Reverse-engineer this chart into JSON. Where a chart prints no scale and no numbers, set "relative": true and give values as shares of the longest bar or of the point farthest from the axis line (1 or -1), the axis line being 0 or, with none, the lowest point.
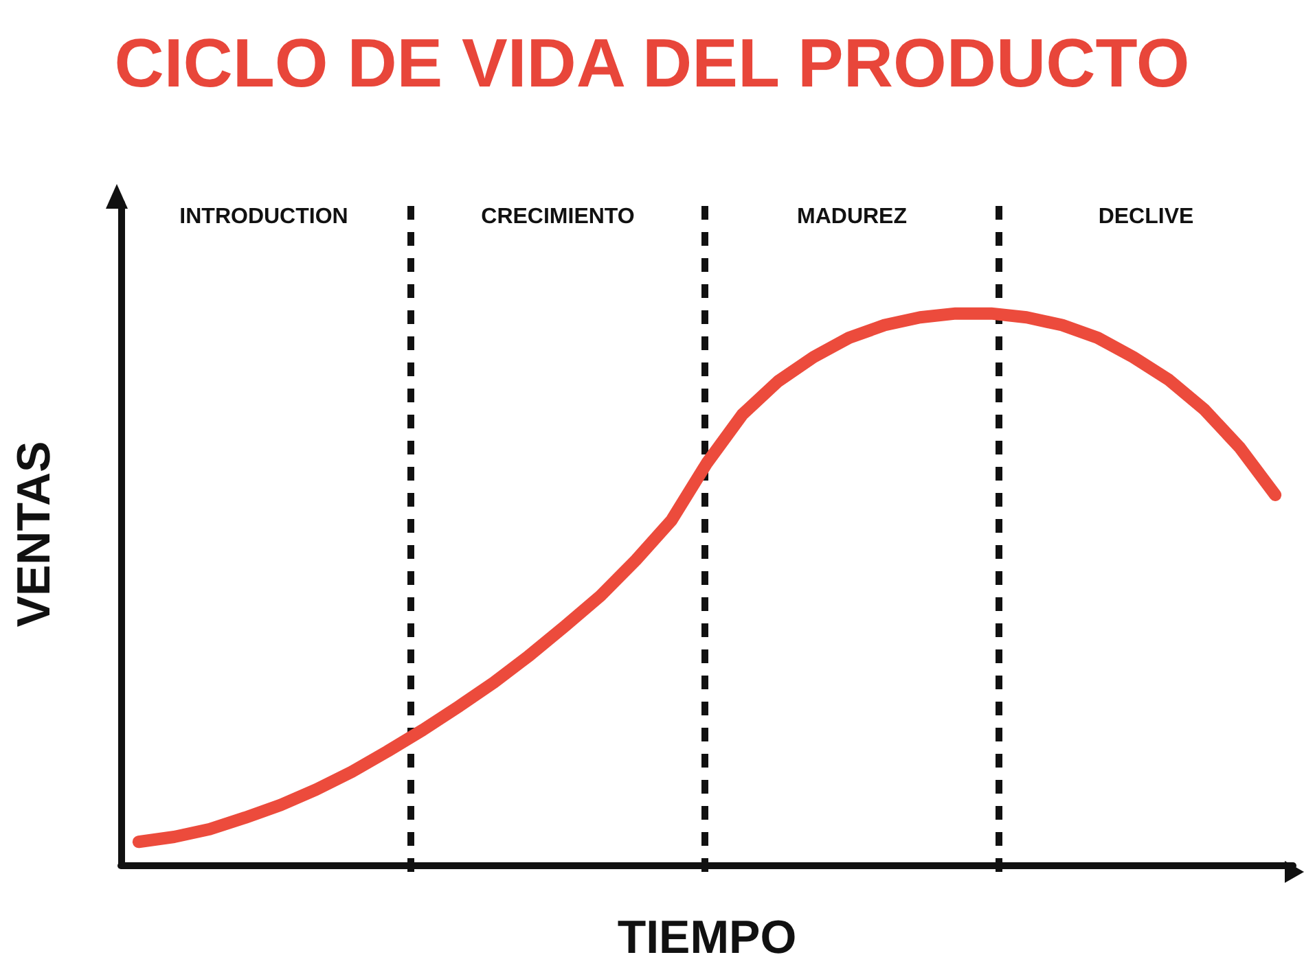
{
  "chart_data": {
    "type": "line",
    "title": "CICLO DE VIDA DEL PRODUCTO",
    "xlabel": "TIEMPO",
    "ylabel": "VENTAS",
    "relative": true,
    "grid": false,
    "line_style": "solid",
    "annotations": [
      "INTRODUCTION",
      "CRECIMIENTO",
      "MADUREZ",
      "DECLIVE"
    ],
    "ref_lines": [
      {
        "axis": "x",
        "color": "#111111",
        "line_style": "dashed"
      },
      {
        "axis": "x",
        "color": "#111111",
        "line_style": "dashed"
      },
      {
        "axis": "x",
        "color": "#111111",
        "line_style": "dashed"
      }
    ],
    "categories": [
      null,
      null,
      null,
      null,
      null,
      null,
      null,
      null,
      null,
      null,
      null,
      null,
      null,
      null,
      null,
      null,
      null,
      null,
      null,
      null,
      null,
      null,
      null,
      null,
      null,
      null,
      null,
      null,
      null,
      null,
      null,
      null,
      null
    ],
    "series": [
      {
        "color": "#ec4b3c",
        "values": [
          0.042,
          0.051,
          0.065,
          0.086,
          0.109,
          0.137,
          0.169,
          0.206,
          0.245,
          0.287,
          0.331,
          0.38,
          0.433,
          0.488,
          0.553,
          0.625,
          0.729,
          0.817,
          0.877,
          0.921,
          0.956,
          0.979,
          0.993,
          1,
          1,
          0.993,
          0.979,
          0.956,
          0.921,
          0.88,
          0.826,
          0.757,
          0.671
        ]
      }
    ]
  }
}
